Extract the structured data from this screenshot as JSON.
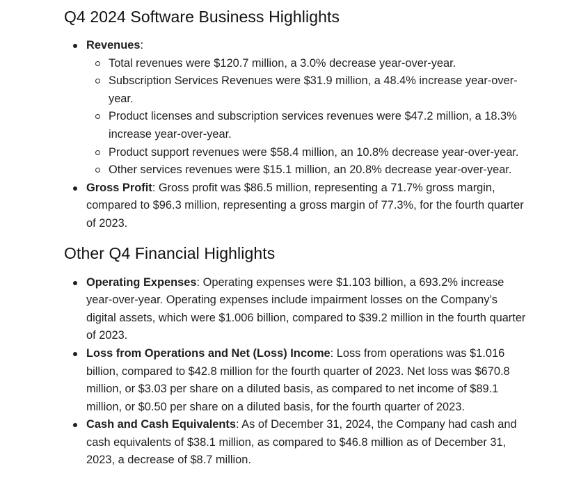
{
  "section1": {
    "title": "Q4 2024 Software Business Highlights",
    "revenues": {
      "label": "Revenues",
      "colon": ":",
      "items": [
        "Total revenues were $120.7 million, a 3.0% decrease year-over-year.",
        "Subscription Services Revenues were $31.9 million, a 48.4% increase year-over-year.",
        "Product licenses and subscription services revenues were $47.2 million, a 18.3% increase year-over-year.",
        "Product support revenues were $58.4 million, an 10.8% decrease year-over-year.",
        "Other services revenues were $15.1 million, an 20.8% decrease year-over-year."
      ]
    },
    "gross_profit": {
      "label": "Gross Profit",
      "text": ": Gross profit was $86.5 million, representing a 71.7% gross margin, compared to $96.3 million, representing a gross margin of 77.3%, for the fourth quarter of 2023."
    }
  },
  "section2": {
    "title": "Other Q4 Financial Highlights",
    "items": [
      {
        "label": "Operating Expenses",
        "text": ": Operating expenses were $1.103 billion, a 693.2% increase year-over-year. Operating expenses include impairment losses on the Company’s digital assets, which were $1.006 billion, compared to $39.2 million in the fourth quarter of 2023."
      },
      {
        "label": "Loss from Operations and Net (Loss) Income",
        "text": ": Loss from operations was $1.016 billion, compared to $42.8 million for the fourth quarter of 2023. Net loss was $670.8 million, or $3.03 per share on a diluted basis, as compared to net income of $89.1 million, or $0.50 per share on a diluted basis, for the fourth quarter of 2023."
      },
      {
        "label": "Cash and Cash Equivalents",
        "text": ": As of December 31, 2024, the Company had cash and cash equivalents of $38.1 million, as compared to $46.8 million as of December 31, 2023, a decrease of $8.7 million."
      }
    ]
  }
}
